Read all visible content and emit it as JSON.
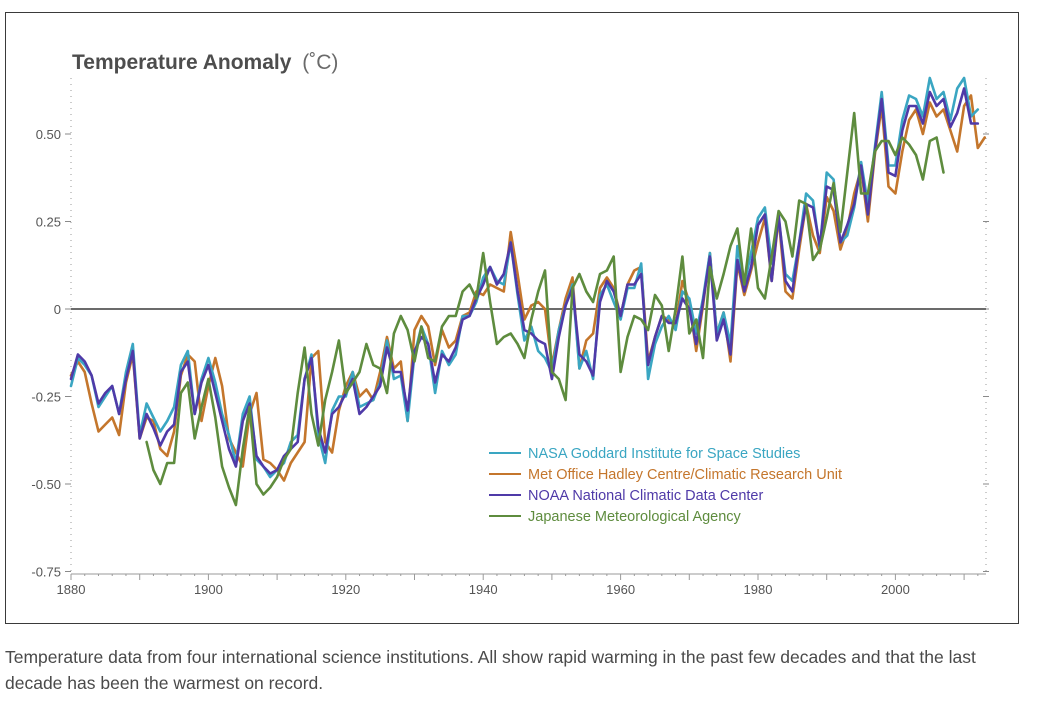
{
  "caption": "Temperature data from four international science institutions. All show rapid warming in the past few decades and that the last decade has been the warmest on record.",
  "chart_data": {
    "type": "line",
    "title": "Temperature Anomaly",
    "title_unit": "(˚C)",
    "xlabel": "",
    "ylabel": "",
    "xlim": [
      1880,
      2013
    ],
    "ylim": [
      -0.75,
      0.65
    ],
    "x_ticks": [
      1880,
      1900,
      1920,
      1940,
      1960,
      1980,
      2000
    ],
    "x_tick_labels": [
      "1880",
      "1900",
      "1920",
      "1940",
      "1960",
      "1980",
      "2000"
    ],
    "y_ticks": [
      0.5,
      0.25,
      0,
      -0.25,
      -0.5,
      -0.75
    ],
    "y_tick_labels": [
      "0.50",
      "0.25",
      "0",
      "-0.25",
      "-0.50",
      "-0.75"
    ],
    "zero_line": true,
    "legend_position": "lower-right",
    "series": [
      {
        "name": "NASA Goddard Institute for Space Studies",
        "color": "#3aa6c2",
        "x_start": 1880,
        "values": [
          -0.22,
          -0.14,
          -0.16,
          -0.19,
          -0.28,
          -0.25,
          -0.22,
          -0.3,
          -0.18,
          -0.1,
          -0.36,
          -0.27,
          -0.31,
          -0.35,
          -0.32,
          -0.28,
          -0.16,
          -0.12,
          -0.3,
          -0.2,
          -0.14,
          -0.21,
          -0.3,
          -0.36,
          -0.44,
          -0.3,
          -0.25,
          -0.43,
          -0.45,
          -0.48,
          -0.46,
          -0.44,
          -0.38,
          -0.36,
          -0.2,
          -0.13,
          -0.36,
          -0.44,
          -0.29,
          -0.25,
          -0.25,
          -0.18,
          -0.28,
          -0.27,
          -0.26,
          -0.21,
          -0.09,
          -0.2,
          -0.19,
          -0.32,
          -0.13,
          -0.05,
          -0.1,
          -0.24,
          -0.12,
          -0.16,
          -0.13,
          -0.02,
          -0.02,
          0.02,
          0.09,
          0.12,
          0.08,
          0.07,
          0.19,
          0.04,
          -0.09,
          -0.05,
          -0.12,
          -0.14,
          -0.18,
          -0.06,
          0.01,
          0.07,
          -0.17,
          -0.12,
          -0.2,
          0.04,
          0.07,
          0.02,
          -0.03,
          0.06,
          0.06,
          0.13,
          -0.2,
          -0.1,
          -0.05,
          -0.02,
          -0.06,
          0.05,
          0.03,
          -0.07,
          0.03,
          0.16,
          -0.07,
          -0.01,
          -0.1,
          0.18,
          0.07,
          0.16,
          0.26,
          0.29,
          0.13,
          0.26,
          0.1,
          0.08,
          0.19,
          0.33,
          0.31,
          0.17,
          0.39,
          0.37,
          0.19,
          0.21,
          0.29,
          0.42,
          0.3,
          0.46,
          0.62,
          0.41,
          0.41,
          0.54,
          0.61,
          0.6,
          0.55,
          0.66,
          0.6,
          0.62,
          0.54,
          0.63,
          0.66,
          0.55,
          0.57
        ]
      },
      {
        "name": "Met Office Hadley Centre/Climatic Research Unit",
        "color": "#c4762c",
        "x_start": 1880,
        "values": [
          -0.19,
          -0.15,
          -0.18,
          -0.27,
          -0.35,
          -0.33,
          -0.31,
          -0.36,
          -0.21,
          -0.13,
          -0.37,
          -0.31,
          -0.32,
          -0.4,
          -0.42,
          -0.35,
          -0.19,
          -0.13,
          -0.15,
          -0.32,
          -0.22,
          -0.14,
          -0.22,
          -0.37,
          -0.41,
          -0.45,
          -0.3,
          -0.24,
          -0.43,
          -0.44,
          -0.46,
          -0.49,
          -0.44,
          -0.41,
          -0.38,
          -0.14,
          -0.12,
          -0.38,
          -0.41,
          -0.29,
          -0.22,
          -0.18,
          -0.25,
          -0.23,
          -0.26,
          -0.18,
          -0.08,
          -0.17,
          -0.15,
          -0.32,
          -0.06,
          -0.02,
          -0.05,
          -0.16,
          -0.06,
          -0.11,
          -0.09,
          -0.02,
          -0.01,
          0.05,
          0.04,
          0.07,
          0.06,
          0.05,
          0.22,
          0.1,
          -0.03,
          0.01,
          0.02,
          -0.0,
          -0.16,
          -0.06,
          0.03,
          0.09,
          -0.17,
          -0.09,
          -0.07,
          0.06,
          0.09,
          0.06,
          -0.02,
          0.07,
          0.11,
          0.12,
          -0.15,
          -0.08,
          -0.02,
          -0.03,
          -0.05,
          0.08,
          0.02,
          -0.12,
          0.01,
          0.16,
          -0.07,
          -0.01,
          -0.15,
          0.13,
          0.04,
          0.11,
          0.19,
          0.26,
          0.08,
          0.26,
          0.05,
          0.03,
          0.17,
          0.3,
          0.21,
          0.16,
          0.32,
          0.28,
          0.17,
          0.23,
          0.33,
          0.4,
          0.25,
          0.44,
          0.58,
          0.35,
          0.33,
          0.45,
          0.54,
          0.57,
          0.5,
          0.59,
          0.55,
          0.57,
          0.51,
          0.45,
          0.58,
          0.61,
          0.46,
          0.49
        ]
      },
      {
        "name": "NOAA National Climatic Data Center",
        "color": "#4f3aa8",
        "x_start": 1880,
        "values": [
          -0.2,
          -0.13,
          -0.15,
          -0.19,
          -0.27,
          -0.24,
          -0.22,
          -0.3,
          -0.2,
          -0.12,
          -0.37,
          -0.3,
          -0.34,
          -0.39,
          -0.35,
          -0.33,
          -0.18,
          -0.15,
          -0.3,
          -0.21,
          -0.16,
          -0.24,
          -0.32,
          -0.4,
          -0.45,
          -0.32,
          -0.27,
          -0.42,
          -0.45,
          -0.47,
          -0.46,
          -0.42,
          -0.4,
          -0.38,
          -0.2,
          -0.14,
          -0.34,
          -0.41,
          -0.3,
          -0.28,
          -0.24,
          -0.2,
          -0.3,
          -0.28,
          -0.25,
          -0.22,
          -0.11,
          -0.18,
          -0.18,
          -0.29,
          -0.12,
          -0.08,
          -0.1,
          -0.21,
          -0.13,
          -0.15,
          -0.11,
          -0.03,
          -0.02,
          0.03,
          0.07,
          0.12,
          0.07,
          0.1,
          0.19,
          0.05,
          -0.06,
          -0.07,
          -0.09,
          -0.1,
          -0.2,
          -0.08,
          0.01,
          0.06,
          -0.13,
          -0.15,
          -0.19,
          0.02,
          0.08,
          0.05,
          -0.02,
          0.07,
          0.07,
          0.1,
          -0.16,
          -0.08,
          -0.02,
          -0.04,
          -0.04,
          0.03,
          0.0,
          -0.1,
          0.02,
          0.15,
          -0.09,
          -0.03,
          -0.13,
          0.14,
          0.05,
          0.12,
          0.24,
          0.27,
          0.08,
          0.27,
          0.08,
          0.05,
          0.19,
          0.3,
          0.29,
          0.18,
          0.35,
          0.34,
          0.19,
          0.24,
          0.3,
          0.41,
          0.27,
          0.45,
          0.6,
          0.39,
          0.38,
          0.51,
          0.58,
          0.58,
          0.53,
          0.62,
          0.58,
          0.6,
          0.52,
          0.56,
          0.63,
          0.53,
          0.53
        ]
      },
      {
        "name": "Japanese Meteorological Agency",
        "color": "#5e8c3e",
        "x_start": 1891,
        "values": [
          -0.38,
          -0.46,
          -0.5,
          -0.44,
          -0.44,
          -0.24,
          -0.21,
          -0.37,
          -0.28,
          -0.2,
          -0.31,
          -0.45,
          -0.51,
          -0.56,
          -0.4,
          -0.28,
          -0.5,
          -0.53,
          -0.51,
          -0.48,
          -0.43,
          -0.4,
          -0.24,
          -0.11,
          -0.3,
          -0.39,
          -0.26,
          -0.18,
          -0.09,
          -0.24,
          -0.21,
          -0.18,
          -0.1,
          -0.16,
          -0.17,
          -0.24,
          -0.07,
          -0.02,
          -0.06,
          -0.15,
          -0.05,
          -0.14,
          -0.15,
          -0.05,
          -0.02,
          -0.02,
          0.05,
          0.07,
          0.03,
          0.16,
          0.02,
          -0.1,
          -0.08,
          -0.07,
          -0.1,
          -0.14,
          -0.03,
          0.05,
          0.11,
          -0.18,
          -0.2,
          -0.26,
          0.06,
          0.1,
          0.05,
          0.02,
          0.1,
          0.11,
          0.15,
          -0.18,
          -0.08,
          -0.02,
          -0.03,
          -0.06,
          0.04,
          0.01,
          -0.12,
          0.0,
          0.15,
          -0.07,
          -0.03,
          -0.14,
          0.12,
          0.03,
          0.1,
          0.18,
          0.23,
          0.07,
          0.23,
          0.06,
          0.03,
          0.15,
          0.28,
          0.25,
          0.15,
          0.31,
          0.3,
          0.14,
          0.17,
          0.26,
          0.36,
          0.22,
          0.39,
          0.56,
          0.33,
          0.33,
          0.45,
          0.48,
          0.48,
          0.44,
          0.49,
          0.47,
          0.44,
          0.37,
          0.48,
          0.49,
          0.39
        ]
      }
    ]
  }
}
